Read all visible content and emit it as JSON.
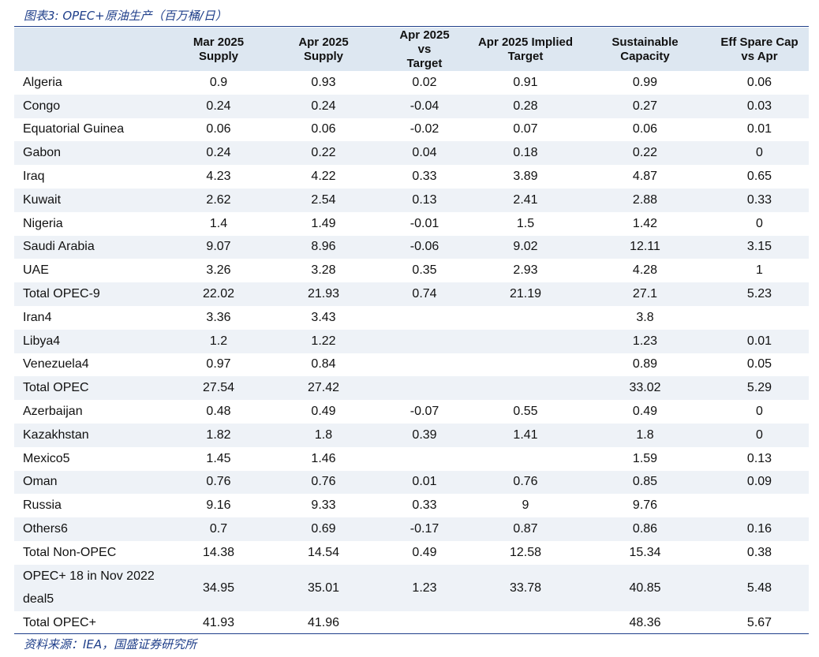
{
  "caption": "图表3:  OPEC+原油生产（百万桶/日）",
  "columns": [
    [
      "Mar 2025",
      "Supply"
    ],
    [
      "Apr 2025",
      "Supply"
    ],
    [
      "Apr 2025",
      "vs",
      "Target"
    ],
    [
      "Apr 2025 Implied",
      "Target"
    ],
    [
      "Sustainable",
      "Capacity"
    ],
    [
      "Eff Spare Cap",
      "vs Apr"
    ]
  ],
  "rows": [
    {
      "name": "Algeria",
      "values": [
        "0.9",
        "0.93",
        "0.02",
        "0.91",
        "0.99",
        "0.06"
      ]
    },
    {
      "name": "Congo",
      "values": [
        "0.24",
        "0.24",
        "-0.04",
        "0.28",
        "0.27",
        "0.03"
      ]
    },
    {
      "name": "Equatorial Guinea",
      "values": [
        "0.06",
        "0.06",
        "-0.02",
        "0.07",
        "0.06",
        "0.01"
      ]
    },
    {
      "name": "Gabon",
      "values": [
        "0.24",
        "0.22",
        "0.04",
        "0.18",
        "0.22",
        "0"
      ]
    },
    {
      "name": "Iraq",
      "values": [
        "4.23",
        "4.22",
        "0.33",
        "3.89",
        "4.87",
        "0.65"
      ]
    },
    {
      "name": "Kuwait",
      "values": [
        "2.62",
        "2.54",
        "0.13",
        "2.41",
        "2.88",
        "0.33"
      ]
    },
    {
      "name": "Nigeria",
      "values": [
        "1.4",
        "1.49",
        "-0.01",
        "1.5",
        "1.42",
        "0"
      ]
    },
    {
      "name": "Saudi Arabia",
      "values": [
        "9.07",
        "8.96",
        "-0.06",
        "9.02",
        "12.11",
        "3.15"
      ]
    },
    {
      "name": "UAE",
      "values": [
        "3.26",
        "3.28",
        "0.35",
        "2.93",
        "4.28",
        "1"
      ]
    },
    {
      "name": "Total OPEC-9",
      "values": [
        "22.02",
        "21.93",
        "0.74",
        "21.19",
        "27.1",
        "5.23"
      ]
    },
    {
      "name": "Iran4",
      "values": [
        "3.36",
        "3.43",
        "",
        "",
        "3.8",
        ""
      ]
    },
    {
      "name": "Libya4",
      "values": [
        "1.2",
        "1.22",
        "",
        "",
        "1.23",
        "0.01"
      ]
    },
    {
      "name": "Venezuela4",
      "values": [
        "0.97",
        "0.84",
        "",
        "",
        "0.89",
        "0.05"
      ]
    },
    {
      "name": "Total OPEC",
      "values": [
        "27.54",
        "27.42",
        "",
        "",
        "33.02",
        "5.29"
      ]
    },
    {
      "name": "Azerbaijan",
      "values": [
        "0.48",
        "0.49",
        "-0.07",
        "0.55",
        "0.49",
        "0"
      ]
    },
    {
      "name": "Kazakhstan",
      "values": [
        "1.82",
        "1.8",
        "0.39",
        "1.41",
        "1.8",
        "0"
      ]
    },
    {
      "name": "Mexico5",
      "values": [
        "1.45",
        "1.46",
        "",
        "",
        "1.59",
        "0.13"
      ]
    },
    {
      "name": "Oman",
      "values": [
        "0.76",
        "0.76",
        "0.01",
        "0.76",
        "0.85",
        "0.09"
      ]
    },
    {
      "name": "Russia",
      "values": [
        "9.16",
        "9.33",
        "0.33",
        "9",
        "9.76",
        ""
      ]
    },
    {
      "name": "Others6",
      "values": [
        "0.7",
        "0.69",
        "-0.17",
        "0.87",
        "0.86",
        "0.16"
      ]
    },
    {
      "name": "Total Non-OPEC",
      "values": [
        "14.38",
        "14.54",
        "0.49",
        "12.58",
        "15.34",
        "0.38"
      ]
    },
    {
      "name": "OPEC+ 18 in Nov 2022 deal5",
      "values": [
        "34.95",
        "35.01",
        "1.23",
        "33.78",
        "40.85",
        "5.48"
      ]
    },
    {
      "name": "Total OPEC+",
      "values": [
        "41.93",
        "41.96",
        "",
        "",
        "48.36",
        "5.67"
      ]
    }
  ],
  "source": "资料来源：IEA，国盛证券研究所"
}
